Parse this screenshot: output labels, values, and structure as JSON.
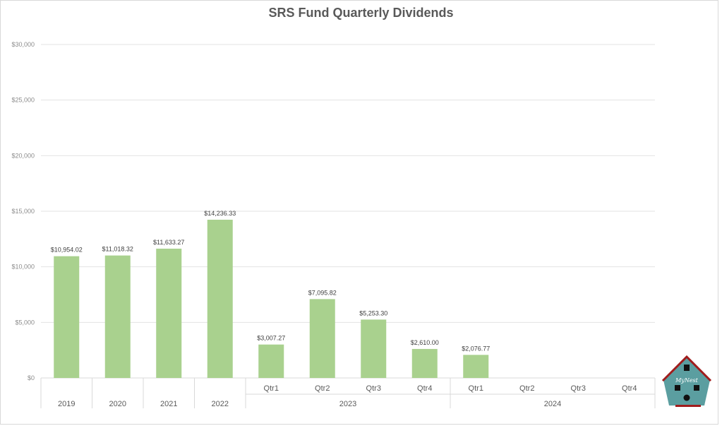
{
  "chart_data": {
    "type": "bar",
    "title": "SRS Fund Quarterly Dividends",
    "xlabel": "",
    "ylabel": "",
    "ylim": [
      0,
      30000
    ],
    "yticks": [
      "$0",
      "$5,000",
      "$10,000",
      "$15,000",
      "$20,000",
      "$25,000",
      "$30,000"
    ],
    "grid": true,
    "groups": [
      {
        "label": "2019",
        "categories": [
          ""
        ]
      },
      {
        "label": "2020",
        "categories": [
          ""
        ]
      },
      {
        "label": "2021",
        "categories": [
          ""
        ]
      },
      {
        "label": "2022",
        "categories": [
          ""
        ]
      },
      {
        "label": "2023",
        "categories": [
          "Qtr1",
          "Qtr2",
          "Qtr3",
          "Qtr4"
        ]
      },
      {
        "label": "2024",
        "categories": [
          "Qtr1",
          "Qtr2",
          "Qtr3",
          "Qtr4"
        ]
      }
    ],
    "values": [
      10954.02,
      11018.32,
      11633.27,
      14236.33,
      3007.27,
      7095.82,
      5253.3,
      2610.0,
      2076.77,
      null,
      null,
      null
    ],
    "data_labels": [
      "$10,954.02",
      "$11,018.32",
      "$11,633.27",
      "$14,236.33",
      "$3,007.27",
      "$7,095.82",
      "$5,253.30",
      "$2,610.00",
      "$2,076.77",
      "",
      "",
      ""
    ],
    "bar_color": "#a9d18e"
  },
  "logo": {
    "text": "MyNest"
  }
}
